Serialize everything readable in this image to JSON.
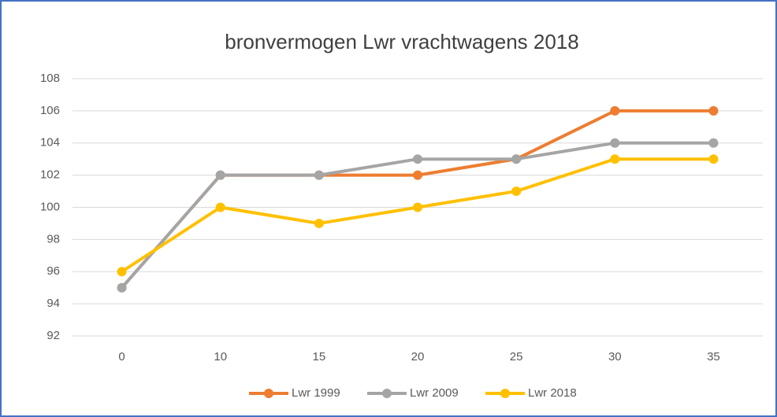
{
  "chart_data": {
    "type": "line",
    "title": "bronvermogen Lwr vrachtwagens 2018",
    "categories": [
      "0",
      "10",
      "15",
      "20",
      "25",
      "30",
      "35"
    ],
    "series": [
      {
        "name": "Lwr 1999",
        "color": "#ed7d31",
        "values": [
          95,
          102,
          102,
          102,
          103,
          106,
          106
        ]
      },
      {
        "name": "Lwr 2009",
        "color": "#a5a5a5",
        "values": [
          95,
          102,
          102,
          103,
          103,
          104,
          104
        ]
      },
      {
        "name": "Lwr 2018",
        "color": "#ffc000",
        "values": [
          96,
          100,
          99,
          100,
          101,
          103,
          103
        ]
      }
    ],
    "ylim": [
      92,
      108
    ],
    "yticks": [
      92,
      94,
      96,
      98,
      100,
      102,
      104,
      106,
      108
    ],
    "grid": true,
    "legend": "bottom"
  }
}
